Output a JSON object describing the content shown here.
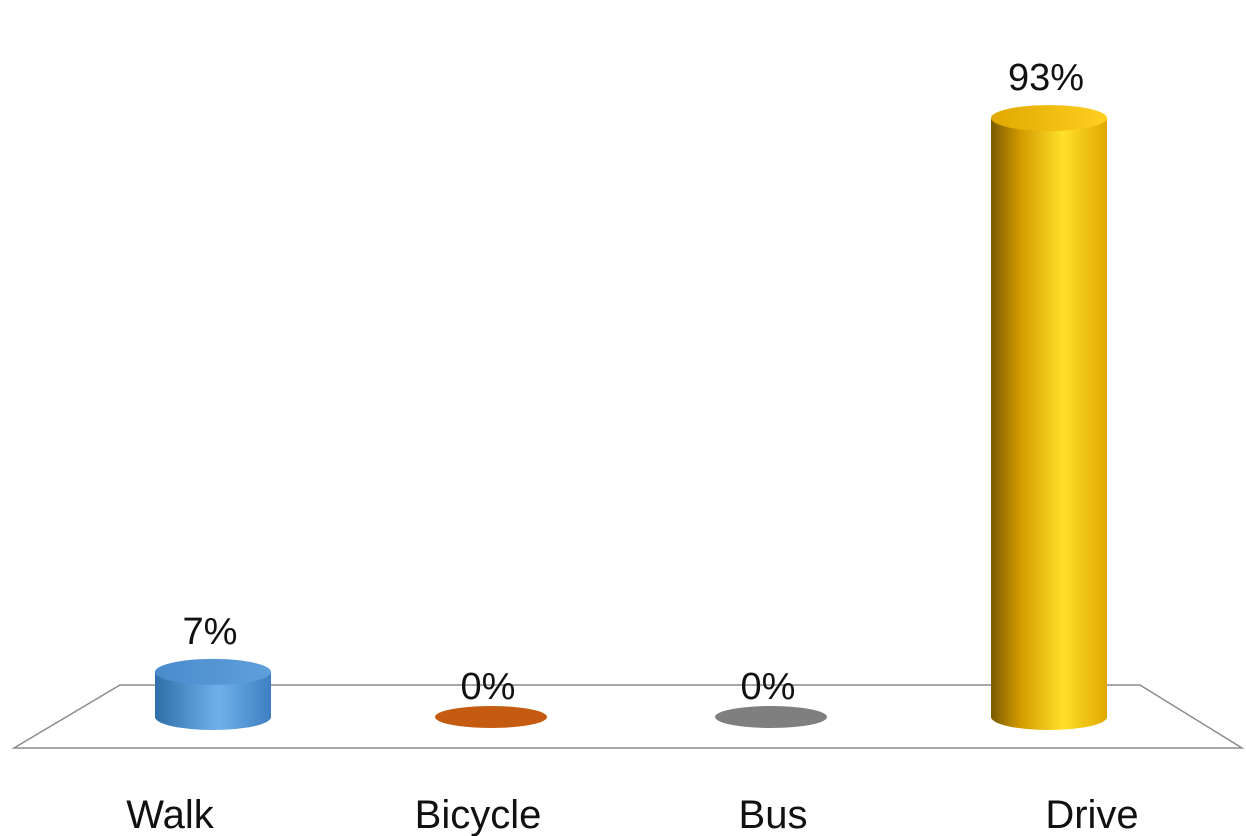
{
  "chart_data": {
    "type": "bar",
    "categories": [
      "Walk",
      "Bicycle",
      "Bus",
      "Drive"
    ],
    "values": [
      7,
      0,
      0,
      93
    ],
    "data_labels": [
      "7%",
      "0%",
      "0%",
      "93%"
    ],
    "colors": [
      "#5b9bd5",
      "#c55a11",
      "#7f7f7f",
      "#ffc000"
    ],
    "title": "",
    "xlabel": "",
    "ylabel": "",
    "ylim": [
      0,
      100
    ],
    "style": "3d-cylinder",
    "grid": false,
    "legend": "none"
  }
}
